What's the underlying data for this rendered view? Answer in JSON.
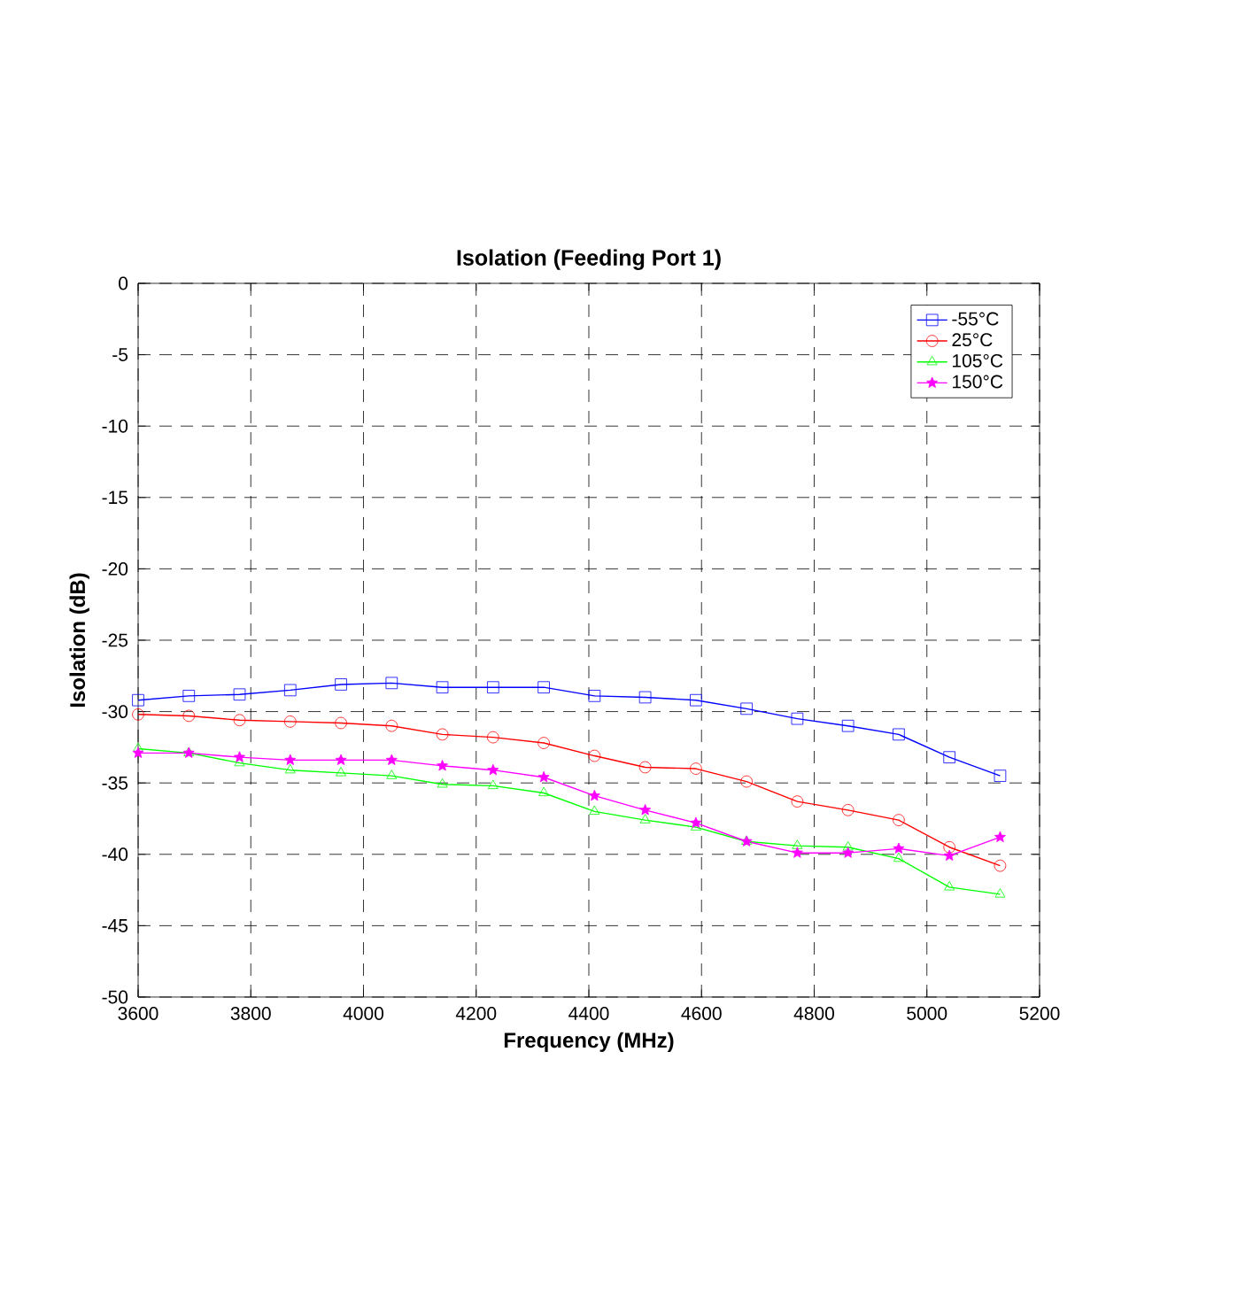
{
  "chart_data": {
    "type": "line",
    "title": "Isolation (Feeding Port 1)",
    "xlabel": "Frequency (MHz)",
    "ylabel": "Isolation (dB)",
    "x": [
      3600,
      3690,
      3780,
      3870,
      3960,
      4050,
      4140,
      4230,
      4320,
      4410,
      4500,
      4590,
      4680,
      4770,
      4860,
      4950,
      5040,
      5130
    ],
    "xlim": [
      3600,
      5200
    ],
    "xticks": [
      3600,
      3800,
      4000,
      4200,
      4400,
      4600,
      4800,
      5000,
      5200
    ],
    "ylim": [
      -50,
      0
    ],
    "yticks": [
      -50,
      -45,
      -40,
      -35,
      -30,
      -25,
      -20,
      -15,
      -10,
      -5,
      0
    ],
    "grid": true,
    "legend": "top right",
    "series": [
      {
        "name": "-55°C",
        "color": "#0000ff",
        "marker": "square",
        "values": [
          -29.2,
          -28.9,
          -28.8,
          -28.5,
          -28.1,
          -28.0,
          -28.3,
          -28.3,
          -28.3,
          -28.9,
          -29.0,
          -29.2,
          -29.8,
          -30.5,
          -31.0,
          -31.6,
          -33.2,
          -34.5
        ]
      },
      {
        "name": "25°C",
        "color": "#ff0000",
        "marker": "circle",
        "values": [
          -30.2,
          -30.3,
          -30.6,
          -30.7,
          -30.8,
          -31.0,
          -31.6,
          -31.8,
          -32.2,
          -33.1,
          -33.9,
          -34.0,
          -34.9,
          -36.3,
          -36.9,
          -37.6,
          -39.5,
          -40.8
        ]
      },
      {
        "name": "105°C",
        "color": "#00ff00",
        "marker": "triangle",
        "values": [
          -32.6,
          -32.9,
          -33.6,
          -34.1,
          -34.3,
          -34.5,
          -35.1,
          -35.2,
          -35.7,
          -37.0,
          -37.6,
          -38.1,
          -39.1,
          -39.4,
          -39.5,
          -40.3,
          -42.3,
          -42.8
        ]
      },
      {
        "name": "150°C",
        "color": "#ff00ff",
        "marker": "star",
        "values": [
          -32.9,
          -32.9,
          -33.2,
          -33.4,
          -33.4,
          -33.4,
          -33.8,
          -34.1,
          -34.6,
          -35.9,
          -36.9,
          -37.8,
          -39.1,
          -39.9,
          -39.9,
          -39.6,
          -40.1,
          -38.8
        ]
      }
    ]
  }
}
